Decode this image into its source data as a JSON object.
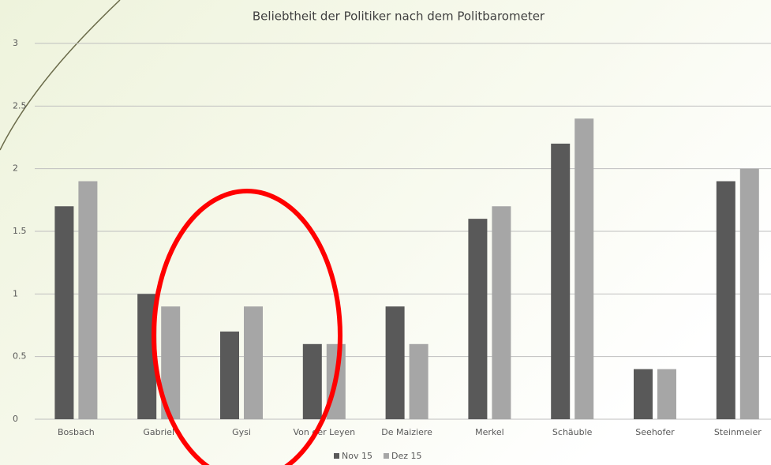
{
  "chart_data": {
    "type": "bar",
    "title": "Beliebtheit der Politiker nach dem Politbarometer",
    "categories": [
      "Bosbach",
      "Gabriel",
      "Gysi",
      "Von der Leyen",
      "De Maiziere",
      "Merkel",
      "Schäuble",
      "Seehofer",
      "Steinmeier"
    ],
    "series": [
      {
        "name": "Nov 15",
        "color": "#595959",
        "values": [
          1.7,
          1.0,
          0.7,
          0.6,
          0.9,
          1.6,
          2.2,
          0.4,
          1.9
        ]
      },
      {
        "name": "Dez 15",
        "color": "#a6a6a6",
        "values": [
          1.9,
          0.9,
          0.9,
          0.6,
          0.6,
          1.7,
          2.4,
          0.4,
          2.0
        ]
      }
    ],
    "ylim": [
      0,
      3
    ],
    "yticks": [
      0,
      0.5,
      1,
      1.5,
      2,
      2.5,
      3
    ],
    "grid": true,
    "legend": "bottom"
  }
}
